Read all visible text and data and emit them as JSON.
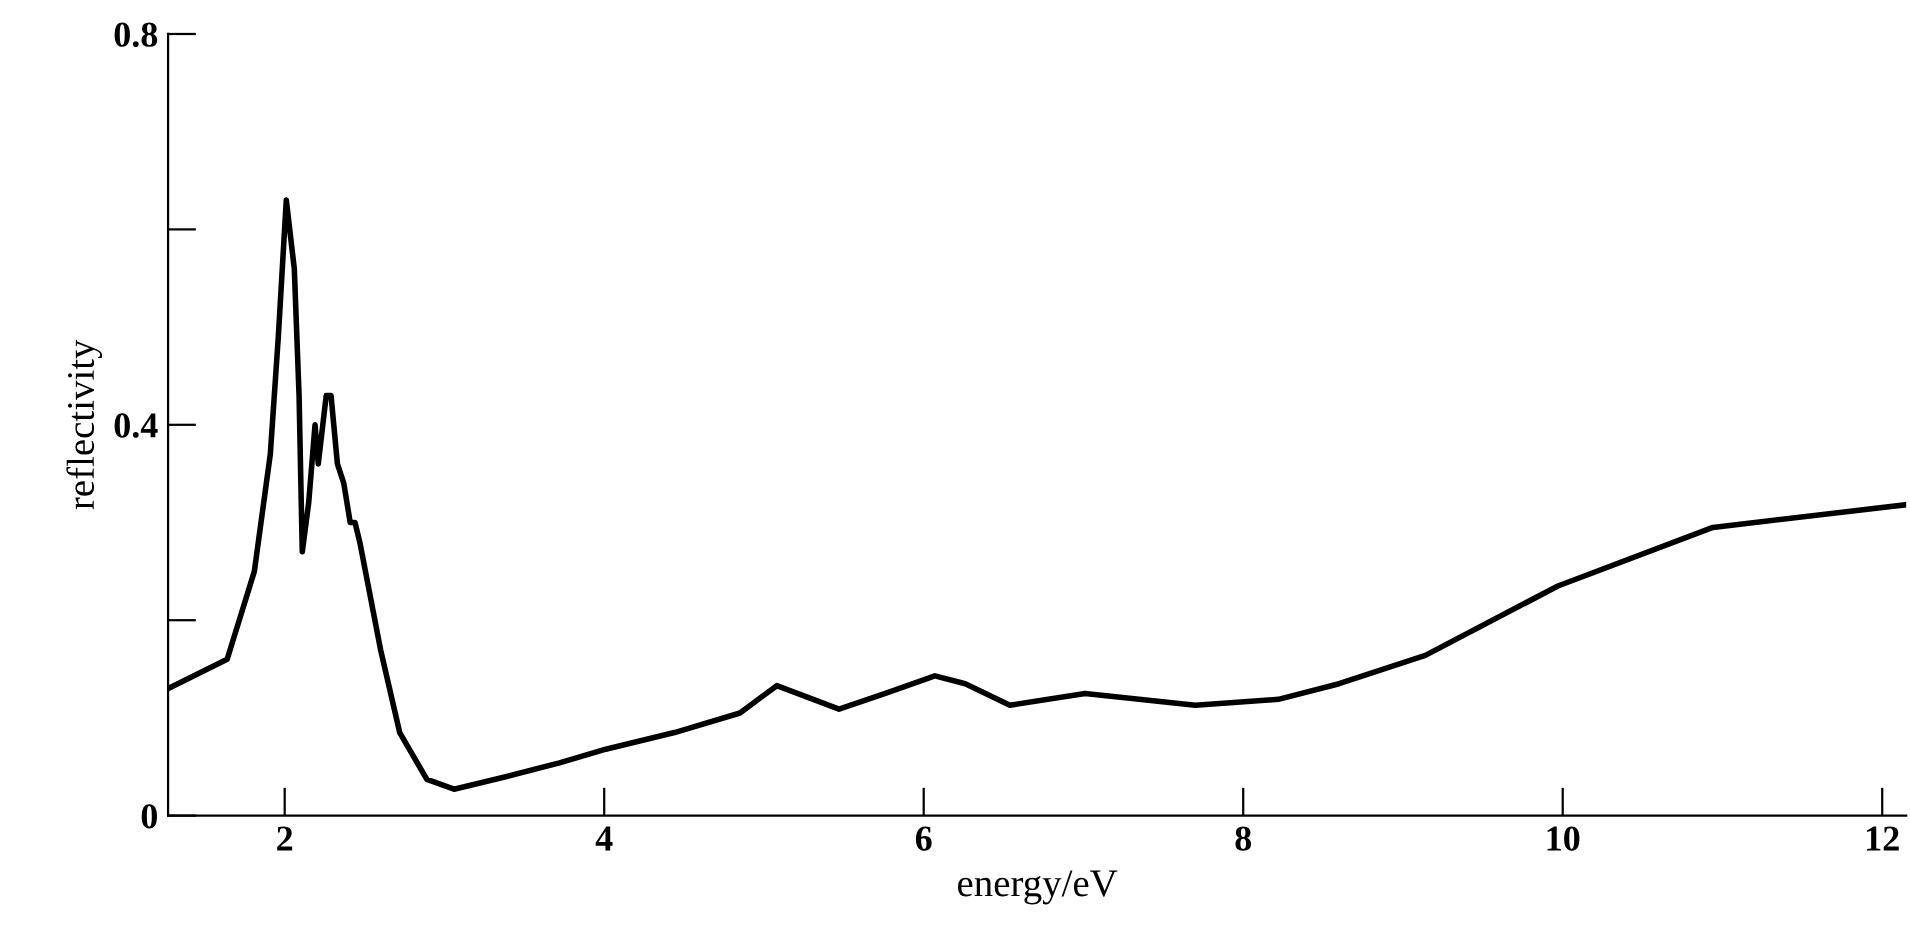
{
  "chart_data": {
    "type": "line",
    "xlabel": "energy/eV",
    "ylabel": "reflectivity",
    "series": [
      {
        "color": "#000000",
        "x": [
          1.27,
          1.64,
          1.81,
          1.91,
          1.96,
          2.01,
          2.06,
          2.09,
          2.11,
          2.15,
          2.19,
          2.21,
          2.26,
          2.29,
          2.33,
          2.37,
          2.41,
          2.44,
          2.47,
          2.6,
          2.72,
          2.89,
          3.06,
          3.39,
          3.72,
          4.01,
          4.44,
          4.85,
          5.08,
          5.47,
          5.76,
          6.07,
          6.26,
          6.54,
          7.01,
          7.7,
          8.22,
          8.6,
          9.14,
          9.97,
          10.94,
          12.14
        ],
        "values": [
          0.13,
          0.16,
          0.25,
          0.37,
          0.49,
          0.63,
          0.56,
          0.43,
          0.27,
          0.32,
          0.4,
          0.36,
          0.43,
          0.43,
          0.36,
          0.34,
          0.3,
          0.3,
          0.28,
          0.17,
          0.085,
          0.037,
          0.027,
          0.04,
          0.054,
          0.068,
          0.085,
          0.105,
          0.133,
          0.109,
          0.125,
          0.143,
          0.135,
          0.113,
          0.125,
          0.113,
          0.119,
          0.135,
          0.164,
          0.235,
          0.295,
          0.318
        ]
      }
    ],
    "xlim": [
      1.27,
      12.15
    ],
    "ylim": [
      0,
      0.8
    ],
    "xticks": [
      2,
      4,
      6,
      8,
      10,
      12
    ],
    "yticks": [
      0,
      {
        "value": 0.2,
        "label": null
      },
      0.4,
      {
        "value": 0.6,
        "label": null
      },
      0.8
    ],
    "grid": false,
    "legend": false,
    "marker": "none",
    "line_style": "solid"
  }
}
